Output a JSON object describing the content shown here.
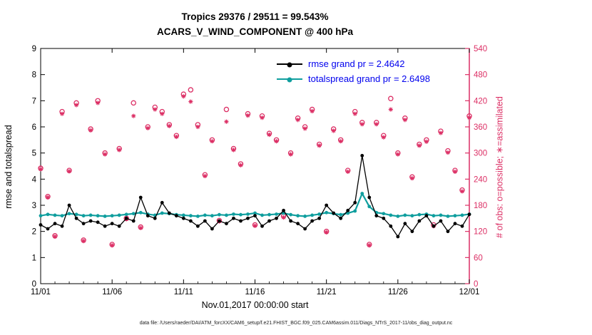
{
  "title": {
    "line1": "Tropics 29376 / 29511 = 99.543%",
    "line2": "ACARS_V_WIND_COMPONENT @ 400 hPa"
  },
  "axes": {
    "left_label": "rmse and totalspread",
    "right_label": "# of obs: o=possible; ∗=assimilated",
    "x_label": "Nov.01,2017 00:00:00 start"
  },
  "legend": [
    {
      "label": "rmse grand pr = 2.4642",
      "color": "#000000"
    },
    {
      "label": "totalspread grand pr = 2.6498",
      "color": "#0f9e9e"
    }
  ],
  "caption": "data file: /Users/raeder/DAI/ATM_forcXX/CAM6_setup/f.e21.FHIST_BGC.f09_025.CAM6assim.011/Diags_NTrS_2017-11/obs_diag_output.nc",
  "colors": {
    "obs_pink": "#dc2f65",
    "totalspread_teal": "#0f9e9e",
    "legend_text_blue": "#0000ee",
    "axis_black": "#000000"
  },
  "chart_data": {
    "type": "line",
    "title": "ACARS_V_WIND_COMPONENT @ 400 hPa",
    "subtitle": "Tropics 29376 / 29511 = 99.543%",
    "xlabel": "Nov.01,2017 00:00:00 start",
    "left_ylabel": "rmse and totalspread",
    "right_ylabel": "# of obs: o=possible; ∗=assimilated",
    "grid": false,
    "legend_position": "top-center-inside",
    "xlim_days": [
      0,
      30
    ],
    "left_ylim": [
      0,
      9
    ],
    "right_ylim": [
      0,
      540
    ],
    "left_yticks": [
      0,
      1,
      2,
      3,
      4,
      5,
      6,
      7,
      8,
      9
    ],
    "right_yticks": [
      0,
      60,
      120,
      180,
      240,
      300,
      360,
      420,
      480,
      540
    ],
    "x_tick_days": [
      0,
      5,
      10,
      15,
      20,
      25,
      30
    ],
    "x_tick_labels": [
      "11/01",
      "11/06",
      "11/11",
      "11/16",
      "11/21",
      "11/26",
      "12/01"
    ],
    "x_days_since_start": [
      0,
      0.5,
      1,
      1.5,
      2,
      2.5,
      3,
      3.5,
      4,
      4.5,
      5,
      5.5,
      6,
      6.5,
      7,
      7.5,
      8,
      8.5,
      9,
      9.5,
      10,
      10.5,
      11,
      11.5,
      12,
      12.5,
      13,
      13.5,
      14,
      14.5,
      15,
      15.5,
      16,
      16.5,
      17,
      17.5,
      18,
      18.5,
      19,
      19.5,
      20,
      20.5,
      21,
      21.5,
      22,
      22.5,
      23,
      23.5,
      24,
      24.5,
      25,
      25.5,
      26,
      26.5,
      27,
      27.5,
      28,
      28.5,
      29,
      29.5,
      30
    ],
    "series": [
      {
        "name": "rmse",
        "axis": "left",
        "style": "line-dot",
        "color": "#000000",
        "grand_value": 2.4642,
        "values": [
          2.25,
          2.1,
          2.3,
          2.2,
          3.0,
          2.5,
          2.3,
          2.4,
          2.35,
          2.2,
          2.3,
          2.2,
          2.5,
          2.4,
          3.3,
          2.6,
          2.5,
          3.1,
          2.7,
          2.6,
          2.5,
          2.4,
          2.2,
          2.4,
          2.1,
          2.4,
          2.3,
          2.5,
          2.4,
          2.5,
          2.6,
          2.2,
          2.4,
          2.5,
          2.8,
          2.4,
          2.3,
          2.1,
          2.4,
          2.5,
          3.0,
          2.7,
          2.5,
          2.8,
          3.1,
          4.9,
          3.3,
          2.6,
          2.5,
          2.2,
          1.8,
          2.3,
          2.0,
          2.4,
          2.6,
          2.2,
          2.4,
          2.0,
          2.3,
          2.2,
          2.65
        ]
      },
      {
        "name": "totalspread",
        "axis": "left",
        "style": "line-dot",
        "color": "#0f9e9e",
        "grand_value": 2.6498,
        "values": [
          2.6,
          2.65,
          2.62,
          2.6,
          2.68,
          2.65,
          2.6,
          2.62,
          2.6,
          2.58,
          2.6,
          2.62,
          2.65,
          2.68,
          2.72,
          2.66,
          2.62,
          2.7,
          2.68,
          2.64,
          2.62,
          2.6,
          2.58,
          2.62,
          2.6,
          2.64,
          2.62,
          2.66,
          2.64,
          2.66,
          2.7,
          2.62,
          2.64,
          2.66,
          2.7,
          2.64,
          2.6,
          2.58,
          2.62,
          2.66,
          2.72,
          2.68,
          2.64,
          2.7,
          2.78,
          3.45,
          2.95,
          2.72,
          2.68,
          2.62,
          2.58,
          2.62,
          2.6,
          2.64,
          2.66,
          2.6,
          2.62,
          2.58,
          2.6,
          2.62,
          2.66
        ]
      },
      {
        "name": "possible_obs_count",
        "axis": "right",
        "style": "open-circle",
        "color": "#dc2f65",
        "values": [
          265,
          200,
          110,
          395,
          260,
          415,
          100,
          355,
          420,
          300,
          90,
          310,
          150,
          415,
          130,
          360,
          405,
          395,
          365,
          340,
          435,
          445,
          365,
          250,
          330,
          145,
          400,
          310,
          275,
          390,
          135,
          385,
          345,
          330,
          155,
          300,
          380,
          360,
          400,
          320,
          120,
          355,
          330,
          260,
          395,
          370,
          90,
          370,
          340,
          425,
          300,
          380,
          245,
          320,
          330,
          135,
          350,
          305,
          260,
          215,
          385
        ]
      },
      {
        "name": "assimilated_obs_count",
        "axis": "right",
        "style": "asterisk",
        "color": "#dc2f65",
        "values": [
          263,
          198,
          108,
          390,
          258,
          410,
          98,
          352,
          415,
          297,
          88,
          307,
          148,
          385,
          128,
          357,
          400,
          390,
          362,
          337,
          430,
          418,
          360,
          247,
          327,
          143,
          372,
          307,
          272,
          386,
          133,
          381,
          342,
          327,
          152,
          297,
          376,
          356,
          396,
          317,
          118,
          351,
          327,
          257,
          390,
          366,
          88,
          366,
          336,
          400,
          297,
          376,
          242,
          317,
          326,
          132,
          346,
          301,
          257,
          212,
          381
        ]
      }
    ]
  }
}
